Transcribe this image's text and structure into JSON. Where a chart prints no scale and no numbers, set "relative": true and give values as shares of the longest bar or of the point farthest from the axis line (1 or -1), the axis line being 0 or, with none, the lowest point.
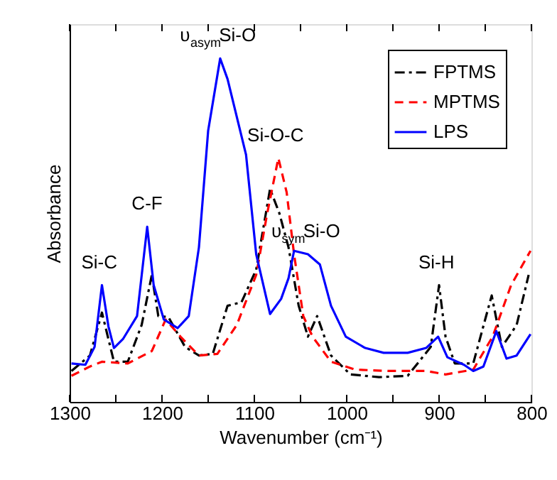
{
  "chart_data": {
    "type": "line",
    "relative": true,
    "xlabel": "Wavenumber (cm⁻¹)",
    "ylabel": "Absorbance",
    "xlim": [
      1300,
      800
    ],
    "xticks": [
      1300,
      {
        "value": 1250,
        "label": null
      },
      1200,
      {
        "value": 1150,
        "label": null
      },
      1100,
      {
        "value": 1050,
        "label": null
      },
      1000,
      {
        "value": 950,
        "label": null
      },
      900,
      {
        "value": 850,
        "label": null
      },
      800
    ],
    "tick_labels": "x",
    "grid": false,
    "legend": "top right",
    "marker": "none",
    "series": [
      {
        "name": "FPTMS",
        "color": "#000000",
        "line_style": "dashdot",
        "x": [
          1298,
          1278,
          1265,
          1252,
          1237,
          1222,
          1211,
          1204,
          1193,
          1175,
          1160,
          1145,
          1129,
          1114,
          1098,
          1083,
          1073,
          1063,
          1052,
          1042,
          1032,
          1017,
          996,
          965,
          934,
          909,
          900,
          893,
          883,
          863,
          843,
          832,
          816,
          803
        ],
        "values": [
          0.09,
          0.135,
          0.26,
          0.117,
          0.117,
          0.224,
          0.37,
          0.25,
          0.247,
          0.16,
          0.135,
          0.14,
          0.28,
          0.29,
          0.385,
          0.62,
          0.55,
          0.45,
          0.28,
          0.19,
          0.25,
          0.135,
          0.08,
          0.072,
          0.076,
          0.16,
          0.34,
          0.19,
          0.112,
          0.112,
          0.31,
          0.16,
          0.224,
          0.37
        ]
      },
      {
        "name": "MPTMS",
        "color": "#ff0000",
        "line_style": "dashed",
        "x": [
          1298,
          1278,
          1265,
          1237,
          1211,
          1196,
          1180,
          1160,
          1140,
          1119,
          1098,
          1086,
          1074,
          1065,
          1057,
          1047,
          1037,
          1017,
          991,
          955,
          914,
          893,
          863,
          842,
          822,
          801
        ],
        "values": [
          0.076,
          0.103,
          0.117,
          0.112,
          0.148,
          0.24,
          0.19,
          0.135,
          0.14,
          0.224,
          0.37,
          0.55,
          0.71,
          0.61,
          0.43,
          0.25,
          0.19,
          0.117,
          0.094,
          0.09,
          0.09,
          0.08,
          0.094,
          0.19,
          0.34,
          0.44
        ]
      },
      {
        "name": "LPS",
        "color": "#0000ff",
        "line_style": "solid",
        "x": [
          1298,
          1283,
          1273,
          1265,
          1258,
          1252,
          1242,
          1227,
          1216,
          1209,
          1198,
          1183,
          1171,
          1160,
          1150,
          1137,
          1129,
          1119,
          1109,
          1098,
          1083,
          1071,
          1063,
          1057,
          1042,
          1029,
          1017,
          1001,
          980,
          960,
          934,
          914,
          901,
          891,
          873,
          863,
          852,
          838,
          827,
          816,
          801
        ],
        "values": [
          0.112,
          0.108,
          0.16,
          0.34,
          0.22,
          0.157,
          0.184,
          0.25,
          0.51,
          0.34,
          0.24,
          0.215,
          0.25,
          0.45,
          0.79,
          1.0,
          0.94,
          0.83,
          0.72,
          0.43,
          0.256,
          0.3,
          0.36,
          0.44,
          0.43,
          0.4,
          0.28,
          0.19,
          0.157,
          0.143,
          0.143,
          0.157,
          0.19,
          0.13,
          0.108,
          0.09,
          0.103,
          0.206,
          0.126,
          0.135,
          0.197
        ]
      }
    ],
    "annotations": [
      {
        "text": "Si-C",
        "x": 1265,
        "y": 0.34
      },
      {
        "text": "C-F",
        "x": 1216,
        "y": 0.51
      },
      {
        "text": "υ$_{asym}$Si-O",
        "x": 1137,
        "y": 1.0
      },
      {
        "text": "Si-O-C",
        "x": 1074,
        "y": 0.71
      },
      {
        "text": "υ$_{sym}$Si-O",
        "x": 1042,
        "y": 0.43
      },
      {
        "text": "Si-H",
        "x": 900,
        "y": 0.34
      }
    ]
  }
}
